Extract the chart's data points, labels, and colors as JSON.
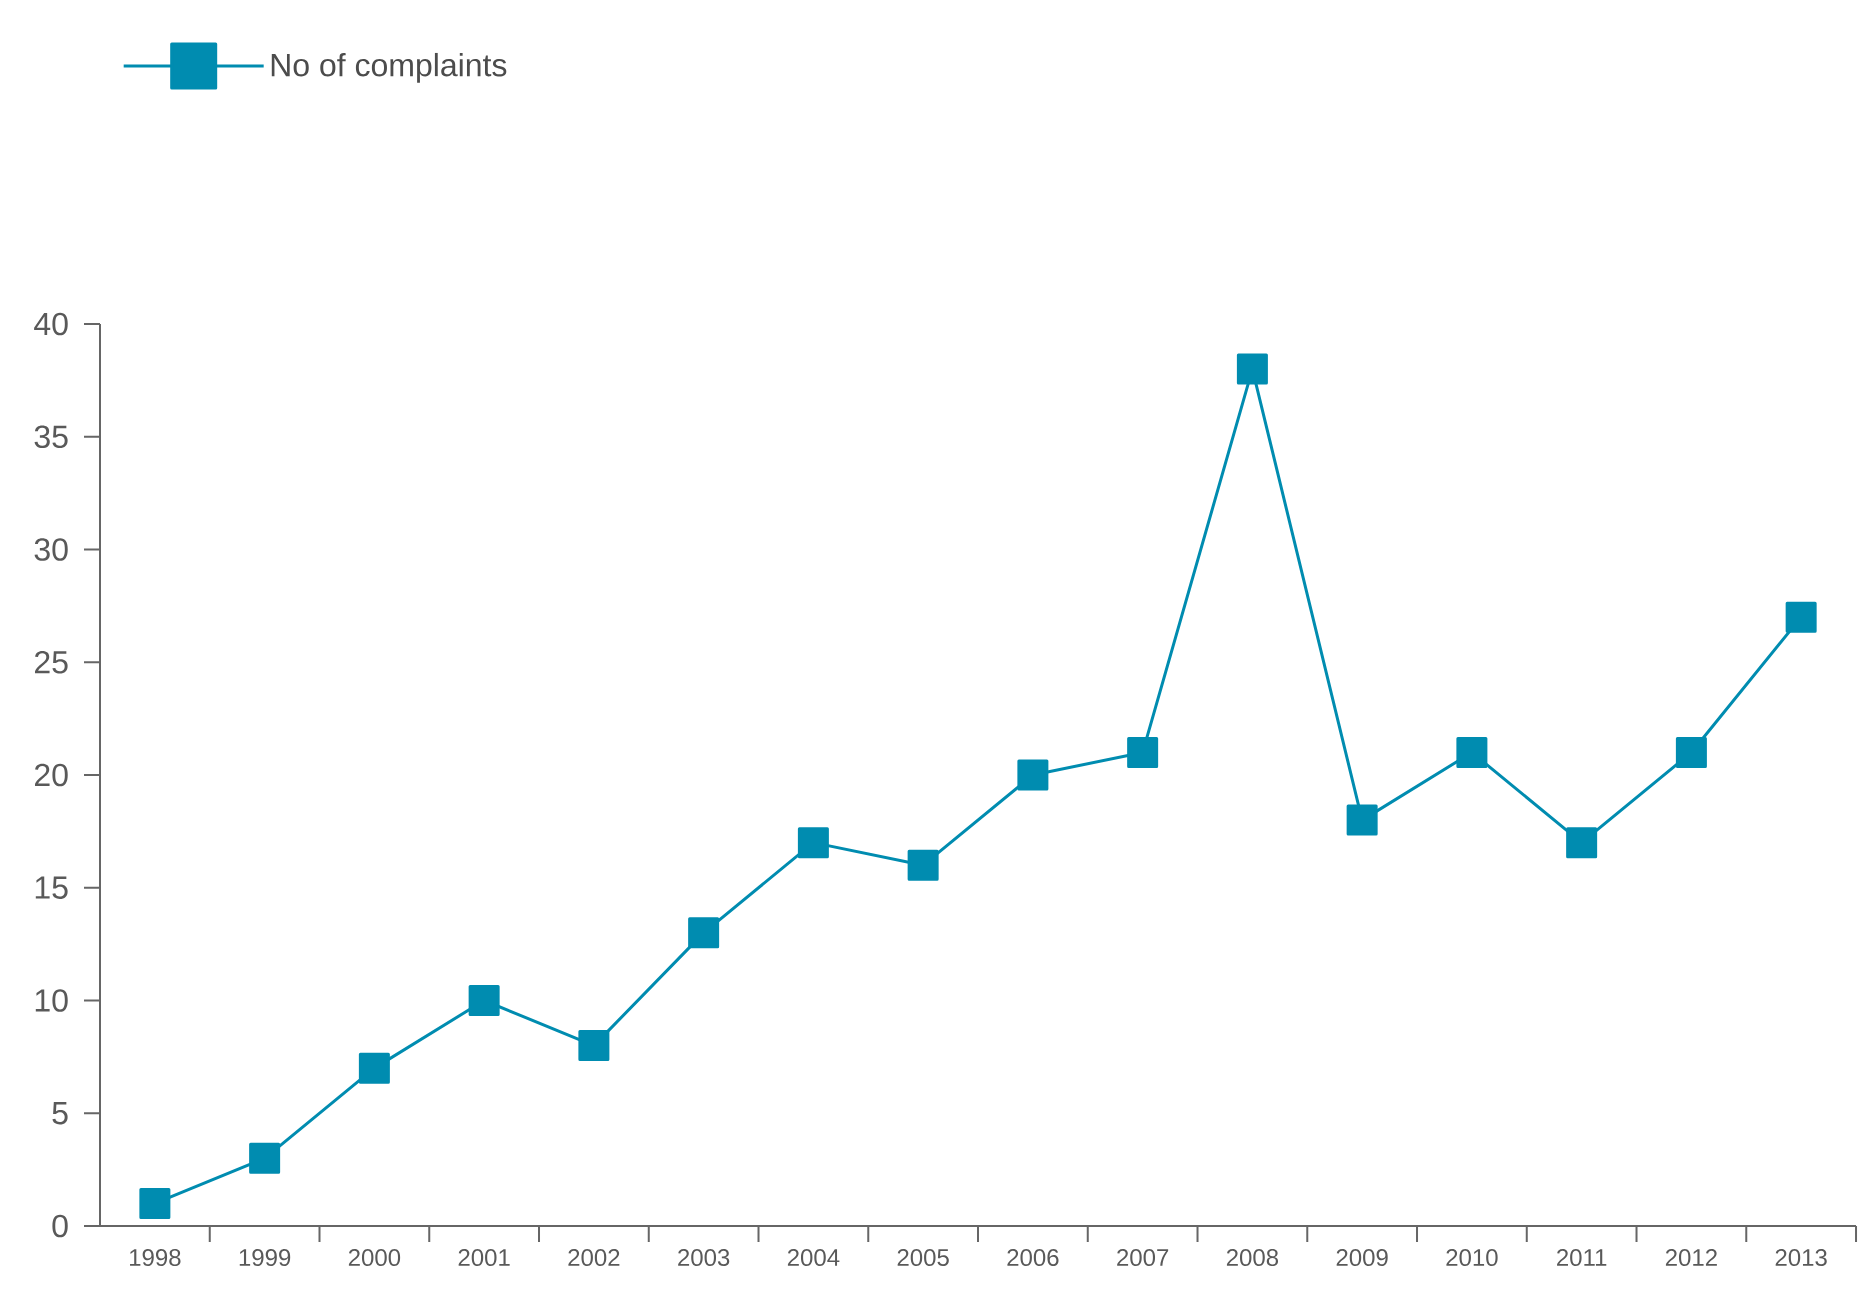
{
  "chart_data": {
    "type": "line",
    "categories": [
      "1998",
      "1999",
      "2000",
      "2001",
      "2002",
      "2003",
      "2004",
      "2005",
      "2006",
      "2007",
      "2008",
      "2009",
      "2010",
      "2011",
      "2012",
      "2013"
    ],
    "series": [
      {
        "name": "No of complaints",
        "color": "#008cb0",
        "values": [
          1,
          3,
          7,
          10,
          8,
          13,
          17,
          16,
          20,
          21,
          38,
          18,
          21,
          17,
          21,
          27
        ]
      }
    ],
    "ylim": [
      0,
      40
    ],
    "yticks": [
      0,
      5,
      10,
      15,
      20,
      25,
      30,
      35,
      40
    ],
    "marker": "square",
    "line_style": "solid",
    "legend": "top left",
    "grid": false
  }
}
